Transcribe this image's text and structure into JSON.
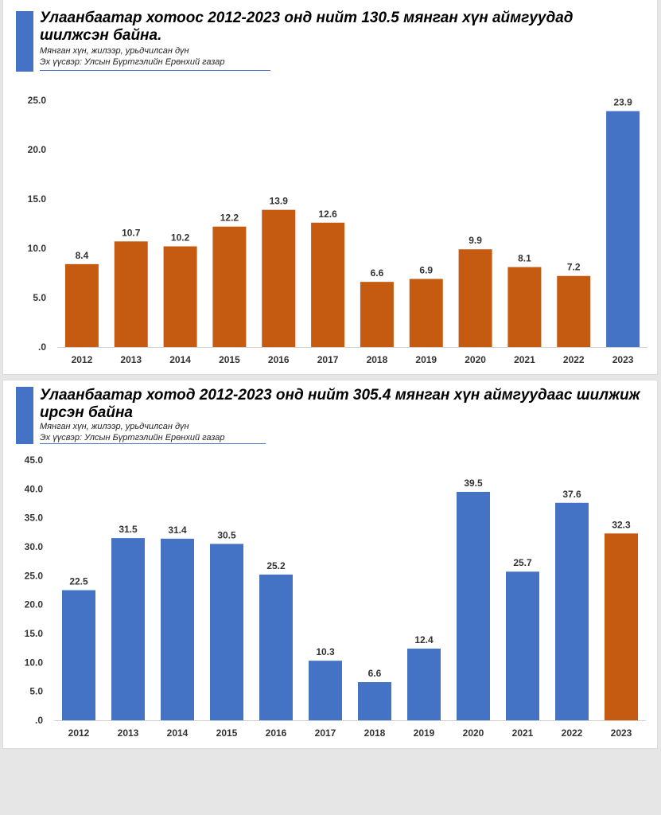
{
  "charts_meta": [
    {
      "title": "Улаанбаатар хотоос 2012-2023 онд нийт 130.5 мянган хүн аймгуудад шилжсэн байна.",
      "unit": "Мянган хүн, жилээр, урьдчилсан дүн",
      "source": "Эх үүсвэр: Улсын Бүртгэлийн Ерөнхий газар"
    },
    {
      "title": "Улаанбаатар хотод 2012-2023 онд нийт 305.4 мянган хүн аймгуудаас шилжиж ирсэн байна",
      "unit": "Мянган хүн, жилээр, урьдчилсан дүн",
      "source": "Эх үүсвэр: Улсын Бүртгэлийн Ерөнхий газар"
    }
  ],
  "colors": {
    "orange": "#c55a11",
    "blue": "#4472c4"
  },
  "chart_data": [
    {
      "type": "bar",
      "title": "Улаанбаатар хотоос 2012-2023 онд нийт 130.5 мянган хүн аймгуудад шилжсэн байна.",
      "categories": [
        "2012",
        "2013",
        "2014",
        "2015",
        "2016",
        "2017",
        "2018",
        "2019",
        "2020",
        "2021",
        "2022",
        "2023"
      ],
      "values": [
        8.4,
        10.7,
        10.2,
        12.2,
        13.9,
        12.6,
        6.6,
        6.9,
        9.9,
        8.1,
        7.2,
        23.9
      ],
      "bar_colors": [
        "#c55a11",
        "#c55a11",
        "#c55a11",
        "#c55a11",
        "#c55a11",
        "#c55a11",
        "#c55a11",
        "#c55a11",
        "#c55a11",
        "#c55a11",
        "#c55a11",
        "#4472c4"
      ],
      "yticks": [
        ".0",
        "5.0",
        "10.0",
        "15.0",
        "20.0",
        "25.0"
      ],
      "ylim": [
        0,
        25
      ],
      "grid": false,
      "data_labels": [
        "8.4",
        "10.7",
        "10.2",
        "12.2",
        "13.9",
        "12.6",
        "6.6",
        "6.9",
        "9.9",
        "8.1",
        "7.2",
        "23.9"
      ]
    },
    {
      "type": "bar",
      "title": "Улаанбаатар хотод 2012-2023 онд нийт 305.4 мянган хүн аймгуудаас шилжиж ирсэн байна",
      "categories": [
        "2012",
        "2013",
        "2014",
        "2015",
        "2016",
        "2017",
        "2018",
        "2019",
        "2020",
        "2021",
        "2022",
        "2023"
      ],
      "values": [
        22.5,
        31.5,
        31.4,
        30.5,
        25.2,
        10.3,
        6.6,
        12.4,
        39.5,
        25.7,
        37.6,
        32.3
      ],
      "bar_colors": [
        "#4472c4",
        "#4472c4",
        "#4472c4",
        "#4472c4",
        "#4472c4",
        "#4472c4",
        "#4472c4",
        "#4472c4",
        "#4472c4",
        "#4472c4",
        "#4472c4",
        "#c55a11"
      ],
      "yticks": [
        ".0",
        "5.0",
        "10.0",
        "15.0",
        "20.0",
        "25.0",
        "30.0",
        "35.0",
        "40.0",
        "45.0"
      ],
      "ylim": [
        0,
        45
      ],
      "grid": false,
      "data_labels": [
        "22.5",
        "31.5",
        "31.4",
        "30.5",
        "25.2",
        "10.3",
        "6.6",
        "12.4",
        "39.5",
        "25.7",
        "37.6",
        "32.3"
      ]
    }
  ]
}
